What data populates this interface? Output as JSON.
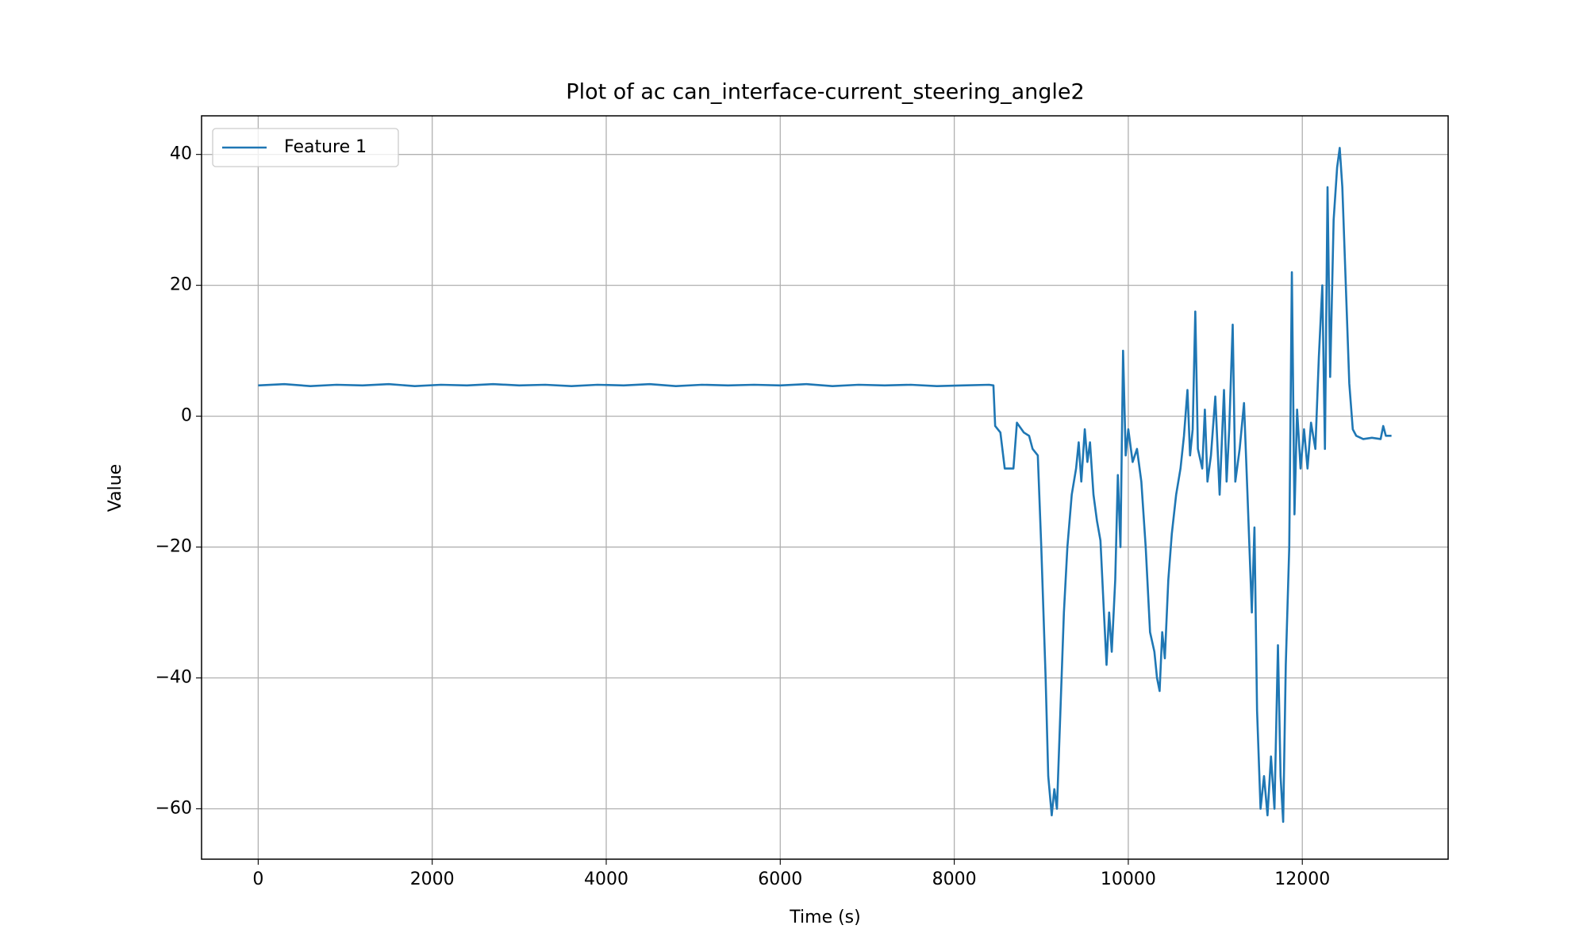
{
  "chart_data": {
    "type": "line",
    "title": "Plot of ac can_interface-current_steering_angle2",
    "xlabel": "Time (s)",
    "ylabel": "Value",
    "x": [
      0,
      300,
      600,
      900,
      1200,
      1500,
      1800,
      2100,
      2400,
      2700,
      3000,
      3300,
      3600,
      3900,
      4200,
      4500,
      4800,
      5100,
      5400,
      5700,
      6000,
      6300,
      6600,
      6900,
      7200,
      7500,
      7800,
      8100,
      8400,
      8450,
      8470,
      8530,
      8580,
      8680,
      8720,
      8800,
      8860,
      8900,
      8960,
      9000,
      9050,
      9080,
      9100,
      9120,
      9150,
      9180,
      9220,
      9260,
      9300,
      9350,
      9400,
      9430,
      9460,
      9500,
      9530,
      9560,
      9600,
      9640,
      9680,
      9720,
      9750,
      9780,
      9810,
      9850,
      9880,
      9910,
      9940,
      9970,
      10000,
      10050,
      10100,
      10150,
      10200,
      10250,
      10300,
      10330,
      10360,
      10390,
      10420,
      10460,
      10500,
      10550,
      10600,
      10640,
      10680,
      10710,
      10740,
      10770,
      10800,
      10850,
      10880,
      10910,
      10950,
      11000,
      11050,
      11100,
      11130,
      11160,
      11200,
      11230,
      11280,
      11330,
      11370,
      11420,
      11450,
      11480,
      11520,
      11560,
      11600,
      11640,
      11680,
      11720,
      11750,
      11780,
      11810,
      11850,
      11880,
      11910,
      11940,
      11980,
      12020,
      12060,
      12100,
      12150,
      12190,
      12230,
      12260,
      12290,
      12320,
      12360,
      12400,
      12430,
      12460,
      12500,
      12540,
      12580,
      12620,
      12700,
      12800,
      12900,
      12930,
      12960,
      13025
    ],
    "series": [
      {
        "name": "Feature 1",
        "color": "#1f77b4",
        "values": [
          4.7,
          4.9,
          4.6,
          4.8,
          4.7,
          4.9,
          4.6,
          4.8,
          4.7,
          4.9,
          4.7,
          4.8,
          4.6,
          4.8,
          4.7,
          4.9,
          4.6,
          4.8,
          4.7,
          4.8,
          4.7,
          4.9,
          4.6,
          4.8,
          4.7,
          4.8,
          4.6,
          4.7,
          4.8,
          4.7,
          -1.5,
          -2.5,
          -8,
          -8,
          -1,
          -2.5,
          -3,
          -5,
          -6,
          -20,
          -40,
          -55,
          -58,
          -61,
          -57,
          -60,
          -45,
          -30,
          -20,
          -12,
          -8,
          -4,
          -10,
          -2,
          -7,
          -4,
          -12,
          -16,
          -19,
          -30,
          -38,
          -30,
          -36,
          -25,
          -9,
          -20,
          10,
          -6,
          -2,
          -7,
          -5,
          -10,
          -20,
          -33,
          -36,
          -40,
          -42,
          -33,
          -37,
          -25,
          -18,
          -12,
          -8,
          -3,
          4,
          -6,
          -2,
          16,
          -5,
          -8,
          1,
          -10,
          -6,
          3,
          -12,
          4,
          -10,
          -2,
          14,
          -10,
          -5,
          2,
          -12,
          -30,
          -17,
          -45,
          -60,
          -55,
          -61,
          -52,
          -60,
          -35,
          -55,
          -62,
          -38,
          -20,
          22,
          -15,
          1,
          -8,
          -2,
          -8,
          -1,
          -5,
          9,
          20,
          -5,
          35,
          6,
          30,
          38,
          41,
          35,
          20,
          5,
          -2,
          -3,
          -3.5,
          -3.3,
          -3.5,
          -1.5,
          -3,
          -3
        ]
      }
    ],
    "xlim": [
      -651,
      13676
    ],
    "ylim": [
      -67.7,
      45.9
    ],
    "xticks": [
      0,
      2000,
      4000,
      6000,
      8000,
      10000,
      12000
    ],
    "yticks": [
      {
        "value": -60,
        "label": "−60"
      },
      {
        "value": -40,
        "label": "−40"
      },
      {
        "value": -20,
        "label": "−20"
      },
      0,
      20,
      40
    ],
    "grid": true,
    "legend": "upper left"
  }
}
